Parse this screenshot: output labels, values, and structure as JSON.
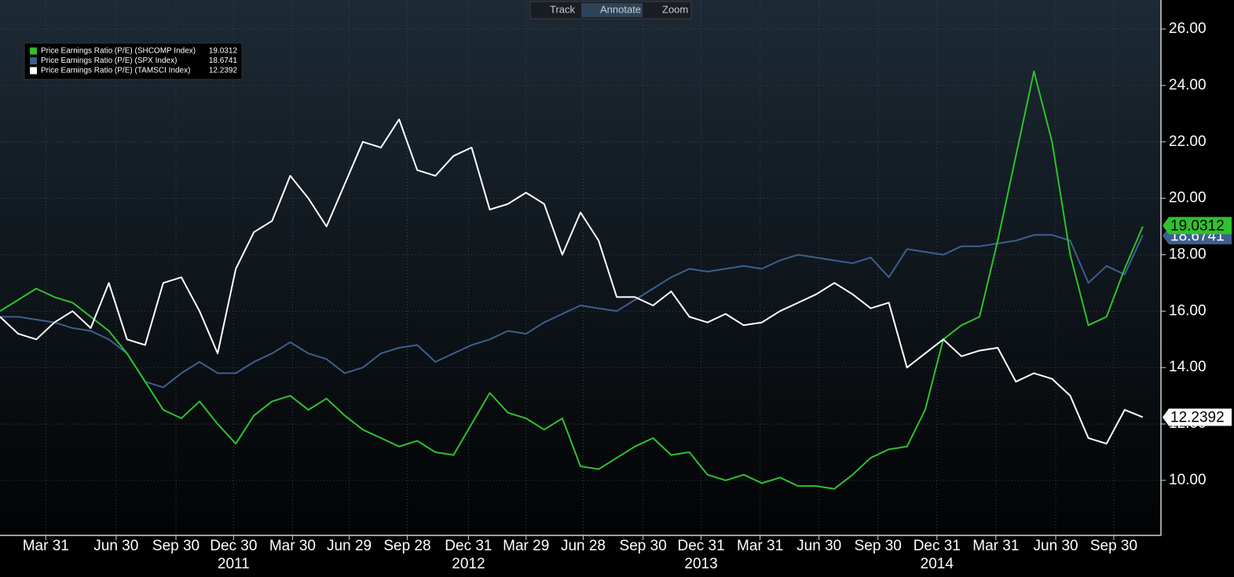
{
  "toolbar": [
    "Track",
    "Annotate",
    "Zoom"
  ],
  "chart_data": {
    "type": "line",
    "x": [
      0,
      4,
      8,
      12,
      16,
      20,
      24,
      28,
      32,
      36,
      40,
      44,
      48,
      52,
      56,
      60,
      64,
      68,
      72,
      76,
      80,
      84,
      88,
      92,
      96,
      100,
      104,
      108,
      112,
      116,
      120,
      124,
      128,
      132,
      136,
      140,
      144,
      148,
      152,
      156,
      160,
      164,
      168,
      172,
      176,
      180,
      184,
      188,
      192,
      196,
      200,
      204,
      208,
      212,
      216,
      220,
      224,
      228,
      232,
      236,
      240,
      244,
      248,
      252
    ],
    "xlim": [
      0,
      256
    ],
    "xticks": [
      {
        "value": 10.1,
        "label": "Mar 31"
      },
      {
        "value": 25.6,
        "label": "Jun 30"
      },
      {
        "value": 38.8,
        "label": "Sep 30"
      },
      {
        "value": 51.5,
        "label": "Dec 30"
      },
      {
        "value": 64.5,
        "label": "Mar 30"
      },
      {
        "value": 77,
        "label": "Jun 29"
      },
      {
        "value": 89.8,
        "label": "Sep 28"
      },
      {
        "value": 103.3,
        "label": "Dec 31"
      },
      {
        "value": 116,
        "label": "Mar 29"
      },
      {
        "value": 128.6,
        "label": "Jun 28"
      },
      {
        "value": 141.8,
        "label": "Sep 30"
      },
      {
        "value": 154.6,
        "label": "Dec 31"
      },
      {
        "value": 167.6,
        "label": "Mar 31"
      },
      {
        "value": 180.6,
        "label": "Jun 30"
      },
      {
        "value": 193.6,
        "label": "Sep 30"
      },
      {
        "value": 206.6,
        "label": "Dec 31"
      },
      {
        "value": 219.6,
        "label": "Mar 31"
      },
      {
        "value": 232.8,
        "label": "Jun 30"
      },
      {
        "value": 245.6,
        "label": "Sep 30"
      }
    ],
    "year_ticks": [
      {
        "value": 51.5,
        "label": "2011"
      },
      {
        "value": 103.3,
        "label": "2012"
      },
      {
        "value": 154.6,
        "label": "2013"
      },
      {
        "value": 206.6,
        "label": "2014"
      }
    ],
    "ylim": [
      8.05,
      27.03
    ],
    "yticks": [
      {
        "value": 10,
        "label": "10.00"
      },
      {
        "value": 12,
        "label": "12.00"
      },
      {
        "value": 14,
        "label": "14.00"
      },
      {
        "value": 16,
        "label": "16.00"
      },
      {
        "value": 18,
        "label": "18.00"
      },
      {
        "value": 20,
        "label": "20.00"
      },
      {
        "value": 22,
        "label": "22.00"
      },
      {
        "value": 24,
        "label": "24.00"
      },
      {
        "value": 26,
        "label": "26.00"
      }
    ],
    "grid": true,
    "legend": "top-left",
    "series": [
      {
        "name": "Price Earnings Ratio (P/E) (SPX Index)",
        "color": "#3d5f8f",
        "last_value": 18.6741,
        "label_color": "#ffffff",
        "values": [
          15.8,
          15.8,
          15.7,
          15.6,
          15.4,
          15.3,
          15.0,
          14.5,
          13.5,
          13.3,
          13.8,
          14.2,
          13.8,
          13.8,
          14.2,
          14.5,
          14.9,
          14.5,
          14.3,
          13.8,
          14.0,
          14.5,
          14.7,
          14.8,
          14.2,
          14.5,
          14.8,
          15.0,
          15.3,
          15.2,
          15.6,
          15.9,
          16.2,
          16.1,
          16.0,
          16.4,
          16.8,
          17.2,
          17.5,
          17.4,
          17.5,
          17.6,
          17.5,
          17.8,
          18.0,
          17.9,
          17.8,
          17.7,
          17.9,
          17.2,
          18.2,
          18.1,
          18.0,
          18.3,
          18.3,
          18.4,
          18.5,
          18.7,
          18.7,
          18.5,
          17.0,
          17.6,
          17.3,
          18.7
        ]
      },
      {
        "name": "Price Earnings Ratio (P/E) (SHCOMP Index)",
        "color": "#2fc12f",
        "last_value": 19.0312,
        "label_color": "#000000",
        "values": [
          16.0,
          16.4,
          16.8,
          16.5,
          16.3,
          15.8,
          15.3,
          14.5,
          13.5,
          12.5,
          12.2,
          12.8,
          12.0,
          11.3,
          12.3,
          12.8,
          13.0,
          12.5,
          12.9,
          12.3,
          11.8,
          11.5,
          11.2,
          11.4,
          11.0,
          10.9,
          12.0,
          13.1,
          12.4,
          12.2,
          11.8,
          12.2,
          10.5,
          10.4,
          10.8,
          11.2,
          11.5,
          10.9,
          11.0,
          10.2,
          10.0,
          10.2,
          9.9,
          10.1,
          9.8,
          9.8,
          9.7,
          10.2,
          10.8,
          11.1,
          11.2,
          12.5,
          15.0,
          15.5,
          15.8,
          18.5,
          21.5,
          24.5,
          22.0,
          18.0,
          15.5,
          15.8,
          17.5,
          19.0
        ]
      },
      {
        "name": "Price Earnings Ratio (P/E) (TAMSCI Index)",
        "color": "#ffffff",
        "last_value": 12.2392,
        "label_color": "#000000",
        "values": [
          15.8,
          15.2,
          15.0,
          15.6,
          16.0,
          15.4,
          17.0,
          15.0,
          14.8,
          17.0,
          17.2,
          16.0,
          14.5,
          17.5,
          18.8,
          19.2,
          20.8,
          20.0,
          19.0,
          20.5,
          22.0,
          21.8,
          22.8,
          21.0,
          20.8,
          21.5,
          21.8,
          19.6,
          19.8,
          20.2,
          19.8,
          18.0,
          19.5,
          18.5,
          16.5,
          16.5,
          16.2,
          16.7,
          15.8,
          15.6,
          15.9,
          15.5,
          15.6,
          16.0,
          16.3,
          16.6,
          17.0,
          16.6,
          16.1,
          16.3,
          14.0,
          14.5,
          15.0,
          14.4,
          14.6,
          14.7,
          13.5,
          13.8,
          13.6,
          13.0,
          11.5,
          11.3,
          12.5,
          12.24
        ]
      }
    ]
  }
}
